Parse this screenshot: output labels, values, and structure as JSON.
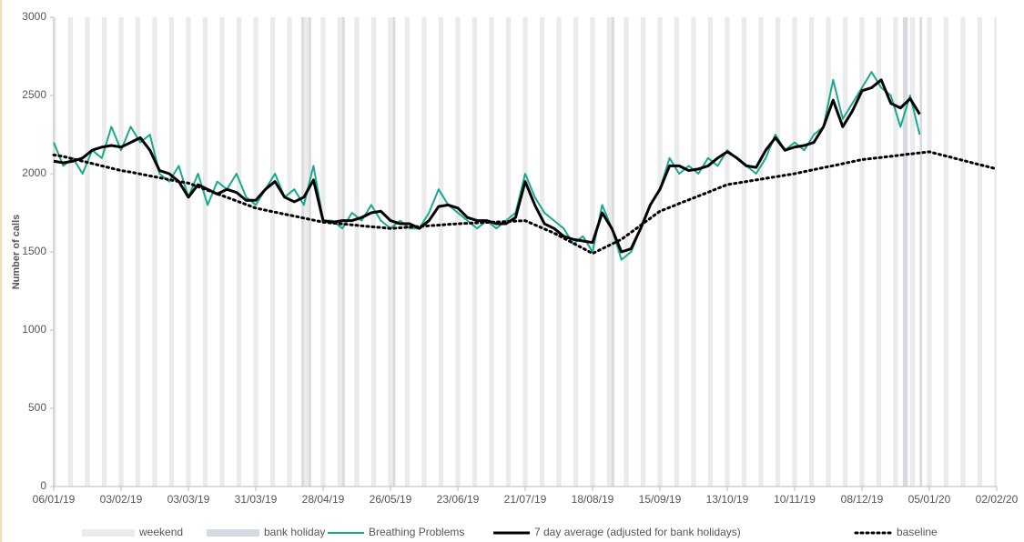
{
  "chart_data": {
    "type": "line",
    "y_label": "Number of calls",
    "xlim": [
      "2019-01-06",
      "2020-02-02"
    ],
    "xticks": [
      {
        "value": "2019-01-06",
        "label": "06/01/19"
      },
      {
        "value": "2019-02-03",
        "label": "03/02/19"
      },
      {
        "value": "2019-03-03",
        "label": "03/03/19"
      },
      {
        "value": "2019-03-31",
        "label": "31/03/19"
      },
      {
        "value": "2019-04-28",
        "label": "28/04/19"
      },
      {
        "value": "2019-05-26",
        "label": "26/05/19"
      },
      {
        "value": "2019-06-23",
        "label": "23/06/19"
      },
      {
        "value": "2019-07-21",
        "label": "21/07/19"
      },
      {
        "value": "2019-08-18",
        "label": "18/08/19"
      },
      {
        "value": "2019-09-15",
        "label": "15/09/19"
      },
      {
        "value": "2019-10-13",
        "label": "13/10/19"
      },
      {
        "value": "2019-11-10",
        "label": "10/11/19"
      },
      {
        "value": "2019-12-08",
        "label": "08/12/19"
      },
      {
        "value": "2020-01-05",
        "label": "05/01/20"
      },
      {
        "value": "2020-02-02",
        "label": "02/02/20"
      }
    ],
    "ylim": [
      0,
      3000
    ],
    "yticks": [
      0,
      500,
      1000,
      1500,
      2000,
      2500,
      3000
    ],
    "bands": [
      {
        "name": "weekend",
        "color": "#ebebeb"
      },
      {
        "name": "bank holiday",
        "color": "#d5dae0",
        "dates": [
          "2019-04-19",
          "2019-04-22",
          "2019-05-06",
          "2019-05-27",
          "2019-08-26",
          "2019-12-25",
          "2019-12-26",
          "2020-01-01"
        ]
      }
    ],
    "x": [
      "2019-01-06",
      "2019-01-10",
      "2019-01-14",
      "2019-01-18",
      "2019-01-22",
      "2019-01-26",
      "2019-01-30",
      "2019-02-03",
      "2019-02-07",
      "2019-02-11",
      "2019-02-15",
      "2019-02-19",
      "2019-02-23",
      "2019-02-27",
      "2019-03-03",
      "2019-03-07",
      "2019-03-11",
      "2019-03-15",
      "2019-03-19",
      "2019-03-23",
      "2019-03-27",
      "2019-03-31",
      "2019-04-04",
      "2019-04-08",
      "2019-04-12",
      "2019-04-16",
      "2019-04-20",
      "2019-04-24",
      "2019-04-28",
      "2019-05-02",
      "2019-05-06",
      "2019-05-10",
      "2019-05-14",
      "2019-05-18",
      "2019-05-22",
      "2019-05-26",
      "2019-05-30",
      "2019-06-03",
      "2019-06-07",
      "2019-06-11",
      "2019-06-15",
      "2019-06-19",
      "2019-06-23",
      "2019-06-27",
      "2019-07-01",
      "2019-07-05",
      "2019-07-09",
      "2019-07-13",
      "2019-07-17",
      "2019-07-21",
      "2019-07-25",
      "2019-07-29",
      "2019-08-02",
      "2019-08-06",
      "2019-08-10",
      "2019-08-14",
      "2019-08-18",
      "2019-08-22",
      "2019-08-26",
      "2019-08-30",
      "2019-09-03",
      "2019-09-07",
      "2019-09-11",
      "2019-09-15",
      "2019-09-19",
      "2019-09-23",
      "2019-09-27",
      "2019-10-01",
      "2019-10-05",
      "2019-10-09",
      "2019-10-13",
      "2019-10-17",
      "2019-10-21",
      "2019-10-25",
      "2019-10-29",
      "2019-11-02",
      "2019-11-06",
      "2019-11-10",
      "2019-11-14",
      "2019-11-18",
      "2019-11-22",
      "2019-11-26",
      "2019-11-30",
      "2019-12-04",
      "2019-12-08",
      "2019-12-12",
      "2019-12-16",
      "2019-12-20",
      "2019-12-24",
      "2019-12-28",
      "2020-01-01",
      "2020-01-05",
      "2020-01-09",
      "2020-01-13",
      "2020-01-17",
      "2020-01-21",
      "2020-01-25",
      "2020-01-29",
      "2020-02-02"
    ],
    "series": [
      {
        "name": "Breathing Problems",
        "color": "#1aa88f",
        "width": 2,
        "dash": "solid",
        "values": [
          2200,
          2050,
          2100,
          2000,
          2150,
          2100,
          2300,
          2150,
          2300,
          2200,
          2250,
          2000,
          1950,
          2050,
          1850,
          2000,
          1800,
          1950,
          1900,
          2000,
          1850,
          1800,
          1900,
          2000,
          1850,
          1900,
          1800,
          2050,
          1700,
          1700,
          1650,
          1750,
          1700,
          1800,
          1700,
          1650,
          1700,
          1650,
          1650,
          1750,
          1900,
          1800,
          1750,
          1700,
          1650,
          1700,
          1650,
          1700,
          1750,
          2000,
          1850,
          1750,
          1700,
          1650,
          1550,
          1600,
          1500,
          1800,
          1650,
          1450,
          1500,
          1650,
          1800,
          1900,
          2100,
          2000,
          2050,
          2000,
          2100,
          2050,
          2150,
          2100,
          2050,
          2000,
          2100,
          2250,
          2150,
          2200,
          2150,
          2250,
          2300,
          2600,
          2350,
          2450,
          2550,
          2650,
          2550,
          2500,
          2300,
          2500,
          2250,
          null,
          null,
          null,
          null,
          null,
          null,
          null,
          null
        ]
      },
      {
        "name": "7 day average (adjusted for bank holidays)",
        "color": "#000000",
        "width": 3,
        "dash": "solid",
        "values": [
          2080,
          2070,
          2080,
          2100,
          2150,
          2170,
          2180,
          2170,
          2200,
          2230,
          2150,
          2020,
          2000,
          1950,
          1850,
          1930,
          1900,
          1870,
          1900,
          1880,
          1830,
          1830,
          1900,
          1950,
          1850,
          1820,
          1850,
          1960,
          1700,
          1690,
          1700,
          1700,
          1720,
          1750,
          1760,
          1700,
          1680,
          1680,
          1650,
          1700,
          1790,
          1800,
          1780,
          1720,
          1700,
          1700,
          1680,
          1680,
          1720,
          1950,
          1800,
          1680,
          1650,
          1600,
          1580,
          1570,
          1560,
          1750,
          1650,
          1500,
          1520,
          1650,
          1800,
          1900,
          2050,
          2050,
          2020,
          2030,
          2050,
          2100,
          2140,
          2100,
          2050,
          2040,
          2150,
          2230,
          2150,
          2170,
          2180,
          2200,
          2300,
          2470,
          2300,
          2400,
          2530,
          2550,
          2600,
          2450,
          2420,
          2480,
          2380,
          null,
          null,
          null,
          null,
          null,
          null,
          null,
          null
        ]
      },
      {
        "name": "baseline",
        "color": "#000000",
        "width": 3,
        "dash": "dotted",
        "values": [
          2120,
          2110,
          2095,
          2080,
          2065,
          2050,
          2035,
          2020,
          2010,
          1998,
          1986,
          1974,
          1962,
          1950,
          1940,
          1917,
          1894,
          1871,
          1849,
          1826,
          1803,
          1780,
          1767,
          1754,
          1741,
          1729,
          1716,
          1703,
          1690,
          1684,
          1679,
          1673,
          1667,
          1661,
          1656,
          1650,
          1654,
          1659,
          1663,
          1667,
          1671,
          1676,
          1680,
          1683,
          1686,
          1689,
          1691,
          1694,
          1697,
          1700,
          1673,
          1647,
          1620,
          1588,
          1555,
          1523,
          1490,
          1520,
          1550,
          1580,
          1625,
          1670,
          1715,
          1760,
          1784,
          1809,
          1833,
          1857,
          1881,
          1906,
          1930,
          1940,
          1950,
          1960,
          1970,
          1980,
          1990,
          2000,
          2013,
          2026,
          2039,
          2051,
          2064,
          2077,
          2090,
          2097,
          2104,
          2111,
          2119,
          2126,
          2133,
          2140,
          2124,
          2109,
          2093,
          2077,
          2061,
          2046,
          2030
        ]
      }
    ]
  }
}
